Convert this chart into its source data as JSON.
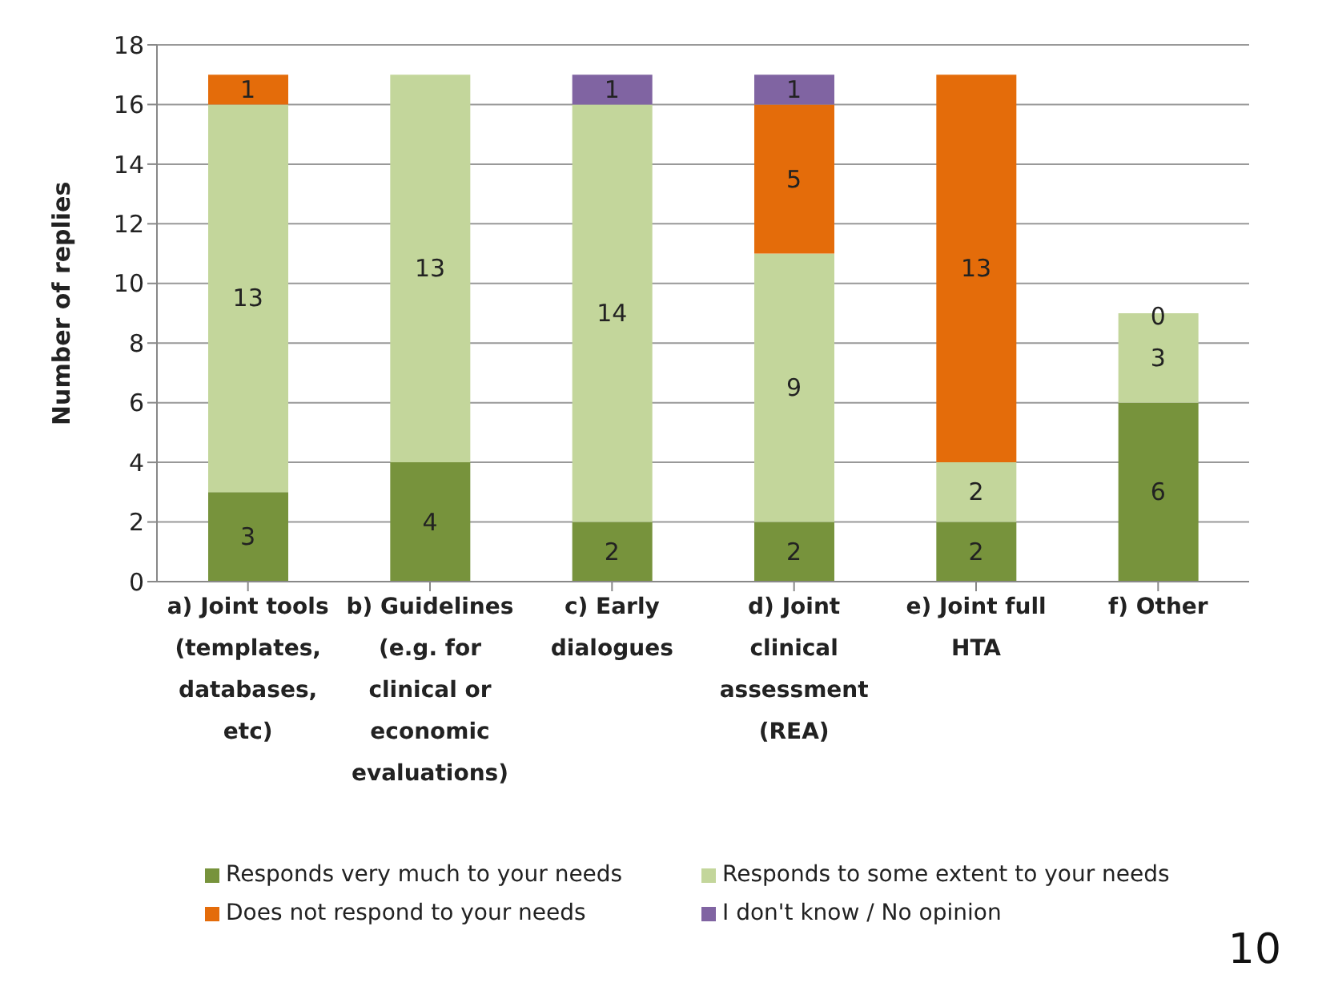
{
  "chart_data": {
    "type": "bar",
    "stacked": true,
    "ylabel": "Number of replies",
    "categories": [
      "a) Joint tools (templates, databases, etc)",
      "b) Guidelines (e.g. for clinical or economic evaluations)",
      "c) Early dialogues",
      "d) Joint clinical assessment (REA)",
      "e) Joint full HTA",
      "f) Other"
    ],
    "series": [
      {
        "name": "Responds very much to your needs",
        "color": "#77933c",
        "values": [
          3,
          4,
          2,
          2,
          2,
          6
        ],
        "value_labels": [
          "3",
          "4",
          "2",
          "2",
          "2",
          "6"
        ]
      },
      {
        "name": "Responds to some extent to your needs",
        "color": "#c3d69b",
        "values": [
          13,
          13,
          14,
          9,
          2,
          3
        ],
        "value_labels": [
          "13",
          "13",
          "14",
          "9",
          "2",
          "3"
        ]
      },
      {
        "name": "Does not respond to your needs",
        "color": "#e46c0a",
        "values": [
          1,
          0,
          0,
          5,
          13,
          0
        ],
        "value_labels": [
          "1",
          null,
          null,
          "5",
          "13",
          "0"
        ]
      },
      {
        "name": "I don't know / No opinion",
        "color": "#8064a2",
        "values": [
          0,
          0,
          1,
          1,
          0,
          0
        ],
        "value_labels": [
          null,
          null,
          "1",
          "1",
          null,
          null
        ]
      }
    ],
    "ylim": [
      0,
      18
    ],
    "yticks": [
      0,
      2,
      4,
      6,
      8,
      10,
      12,
      14,
      16,
      18
    ],
    "grid": "y",
    "legend": "bottom",
    "annotations": [
      "10"
    ]
  }
}
